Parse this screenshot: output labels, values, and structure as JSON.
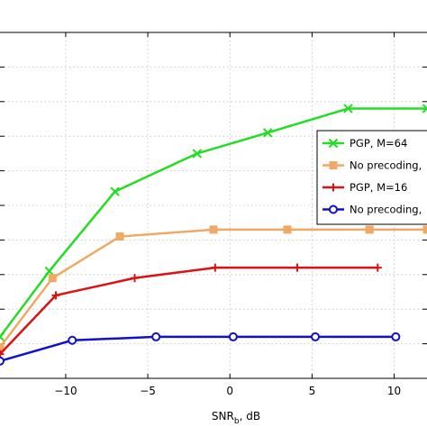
{
  "chart_data": {
    "type": "line",
    "xlabel": "SNR",
    "xlabel_sub": "b",
    "xlabel_suffix": ", dB",
    "xlim": [
      -14,
      12
    ],
    "ylim": [
      0,
      10
    ],
    "x_ticks": [
      -10,
      -5,
      0,
      5,
      10
    ],
    "x_tick_labels": [
      "−10",
      "−5",
      "0",
      "5",
      "10"
    ],
    "y_ticks": [
      1,
      2,
      3,
      4,
      5,
      6,
      7,
      8,
      9,
      10
    ],
    "grid": true,
    "legend_position": "right",
    "series": [
      {
        "name": "PGP, M=64",
        "color": "#22dd22",
        "marker": "x",
        "x": [
          -14,
          -11,
          -7,
          -2,
          2.3,
          7.2,
          12
        ],
        "y": [
          1.2,
          3.1,
          5.4,
          6.5,
          7.1,
          7.8,
          7.8
        ]
      },
      {
        "name": "No precoding,",
        "color": "#f0a862",
        "marker": "square",
        "x": [
          -14,
          -10.8,
          -6.7,
          -1,
          3.5,
          8.5,
          12
        ],
        "y": [
          0.9,
          2.9,
          4.1,
          4.3,
          4.3,
          4.3,
          4.3
        ]
      },
      {
        "name": "PGP, M=16",
        "color": "#dd1111",
        "marker": "plus",
        "x": [
          -14,
          -10.6,
          -5.8,
          -0.9,
          4.1,
          9
        ],
        "y": [
          0.7,
          2.4,
          2.9,
          3.2,
          3.2,
          3.2
        ]
      },
      {
        "name": "No precoding,",
        "color": "#1111cc",
        "marker": "circle",
        "x": [
          -14,
          -9.6,
          -4.5,
          0.2,
          5.2,
          10.1
        ],
        "y": [
          0.5,
          1.1,
          1.2,
          1.2,
          1.2,
          1.2
        ]
      }
    ]
  }
}
